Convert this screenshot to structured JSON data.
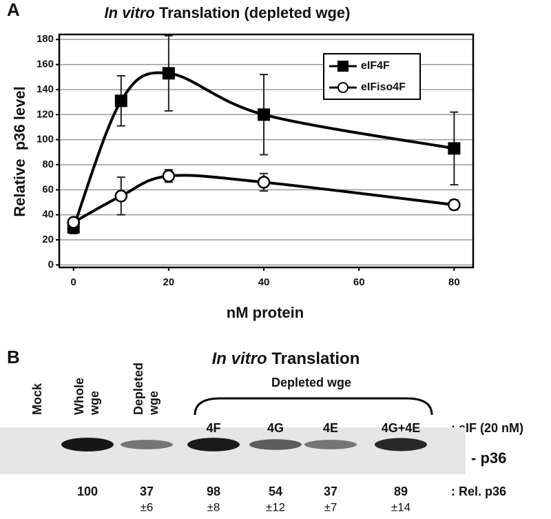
{
  "chart_data": [
    {
      "type": "line",
      "panel": "A",
      "title_parts": [
        "In vitro",
        " Translation (depleted wge)"
      ],
      "x_label": "nM protein",
      "y_label": "Relative  p36 level",
      "x": [
        0,
        10,
        20,
        40,
        80
      ],
      "series": [
        {
          "name": "eIF4F",
          "color": "#000000",
          "marker": "square",
          "values": [
            30,
            131,
            153,
            120,
            93
          ],
          "errors": [
            5,
            20,
            30,
            32,
            29
          ]
        },
        {
          "name": "eIFiso4F",
          "color": "#000000",
          "marker": "circle",
          "values": [
            34,
            55,
            71,
            66,
            48
          ],
          "errors": [
            3,
            15,
            5,
            7,
            4
          ]
        }
      ],
      "xlim": [
        -3,
        84
      ],
      "xticks": [
        0,
        20,
        40,
        60,
        80
      ],
      "ylim": [
        -2,
        184
      ],
      "yticks": [
        0,
        20,
        40,
        60,
        80,
        100,
        120,
        140,
        160,
        180
      ],
      "grid": true,
      "legend": "upper right"
    },
    {
      "type": "gel",
      "panel": "B",
      "title_parts": [
        "In vitro",
        " Translation"
      ],
      "group_label": "Depleted wge",
      "categories": [
        [
          "Mock"
        ],
        [
          "Whole",
          "wge"
        ],
        [
          "Depleted",
          "wge"
        ],
        [
          "4F"
        ],
        [
          "4G"
        ],
        [
          "4E"
        ],
        [
          "4G+4E"
        ]
      ],
      "values": [
        null,
        100,
        37,
        98,
        54,
        37,
        89
      ],
      "errors": [
        null,
        null,
        6,
        8,
        12,
        7,
        14
      ],
      "error_labels": [
        null,
        null,
        "±6",
        "±8",
        "±12",
        "±7",
        "±14"
      ],
      "lane_note": ": eIF (20 nM)",
      "band_label": "- p36",
      "value_note": ": Rel. p36"
    }
  ]
}
